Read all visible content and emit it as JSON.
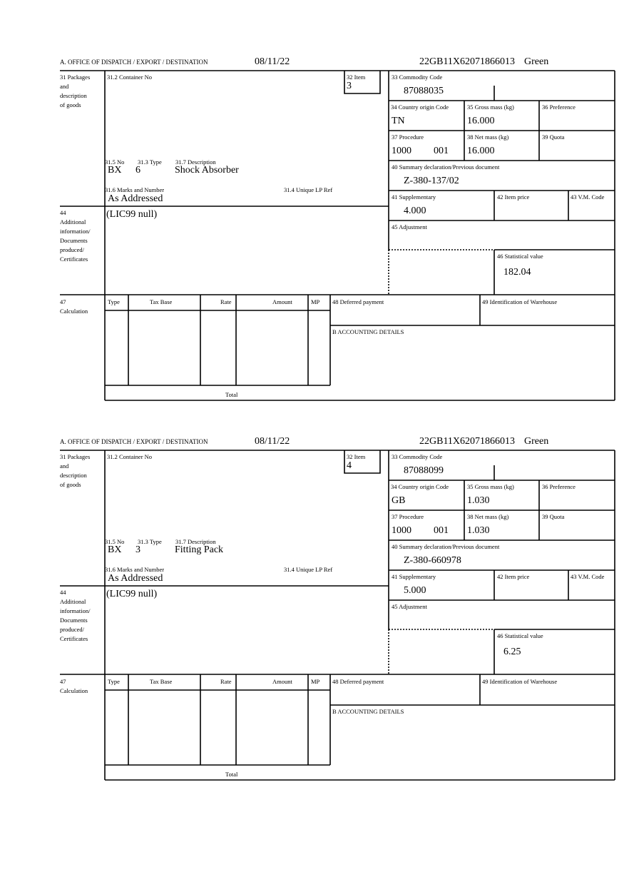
{
  "labels": {
    "header_office": "A. OFFICE OF DISPATCH / EXPORT / DESTINATION",
    "packages": "31 Packages\nand\ndescription\nof goods",
    "container_no": "31.2 Container No",
    "item": "32 Item",
    "no": "31.5 No",
    "type": "31.3 Type",
    "description": "31.7 Description",
    "marks": "31.6 Marks and Number",
    "unique_lp_ref": "31.4 Unique LP Ref",
    "additional_info": "44\nAdditional\ninformation/\nDocuments\nproduced/\nCertificates",
    "commodity_code": "33 Commodity Code",
    "country_origin": "34 Country origin Code",
    "gross_mass": "35 Gross mass (kg)",
    "preference": "36 Preference",
    "procedure": "37 Procedure",
    "net_mass": "38 Net mass (kg)",
    "quota": "39 Quota",
    "summary_declaration": "40 Summary declaration/Previous document",
    "supplementary": "41 Supplementary",
    "item_price": "42 Item price",
    "vm_code": "43 V.M. Code",
    "adjustment": "45 Adjustment",
    "statistical_value": "46 Statistical value",
    "calculation_no": "47",
    "calculation": "Calculation",
    "col_type": "Type",
    "col_tax_base": "Tax Base",
    "col_rate": "Rate",
    "col_amount": "Amount",
    "col_mp": "MP",
    "deferred_payment": "48 Deferred payment",
    "warehouse": "49 Identification of Warehouse",
    "accounting": "B ACCOUNTING DETAILS",
    "total": "Total"
  },
  "forms": [
    {
      "date": "08/11/22",
      "reference": "22GB11X62071866013",
      "route": "Green",
      "item": "3",
      "pkg_kind": "BX",
      "pkg_count": "6",
      "description": "Shock Absorber",
      "marks": "As Addressed",
      "additional_info": "(LIC99 null)",
      "commodity_code": "87088035",
      "country_origin": "TN",
      "gross_mass": "16.000",
      "procedure": "1000",
      "procedure_additional": "001",
      "net_mass": "16.000",
      "summary_declaration": "Z-380-137/02",
      "supplementary": "4.000",
      "statistical_value": "182.04"
    },
    {
      "date": "08/11/22",
      "reference": "22GB11X62071866013",
      "route": "Green",
      "item": "4",
      "pkg_kind": "BX",
      "pkg_count": "3",
      "description": "Fitting Pack",
      "marks": "As Addressed",
      "additional_info": "(LIC99 null)",
      "commodity_code": "87088099",
      "country_origin": "GB",
      "gross_mass": "1.030",
      "procedure": "1000",
      "procedure_additional": "001",
      "net_mass": "1.030",
      "summary_declaration": "Z-380-660978",
      "supplementary": "5.000",
      "statistical_value": "6.25"
    }
  ]
}
